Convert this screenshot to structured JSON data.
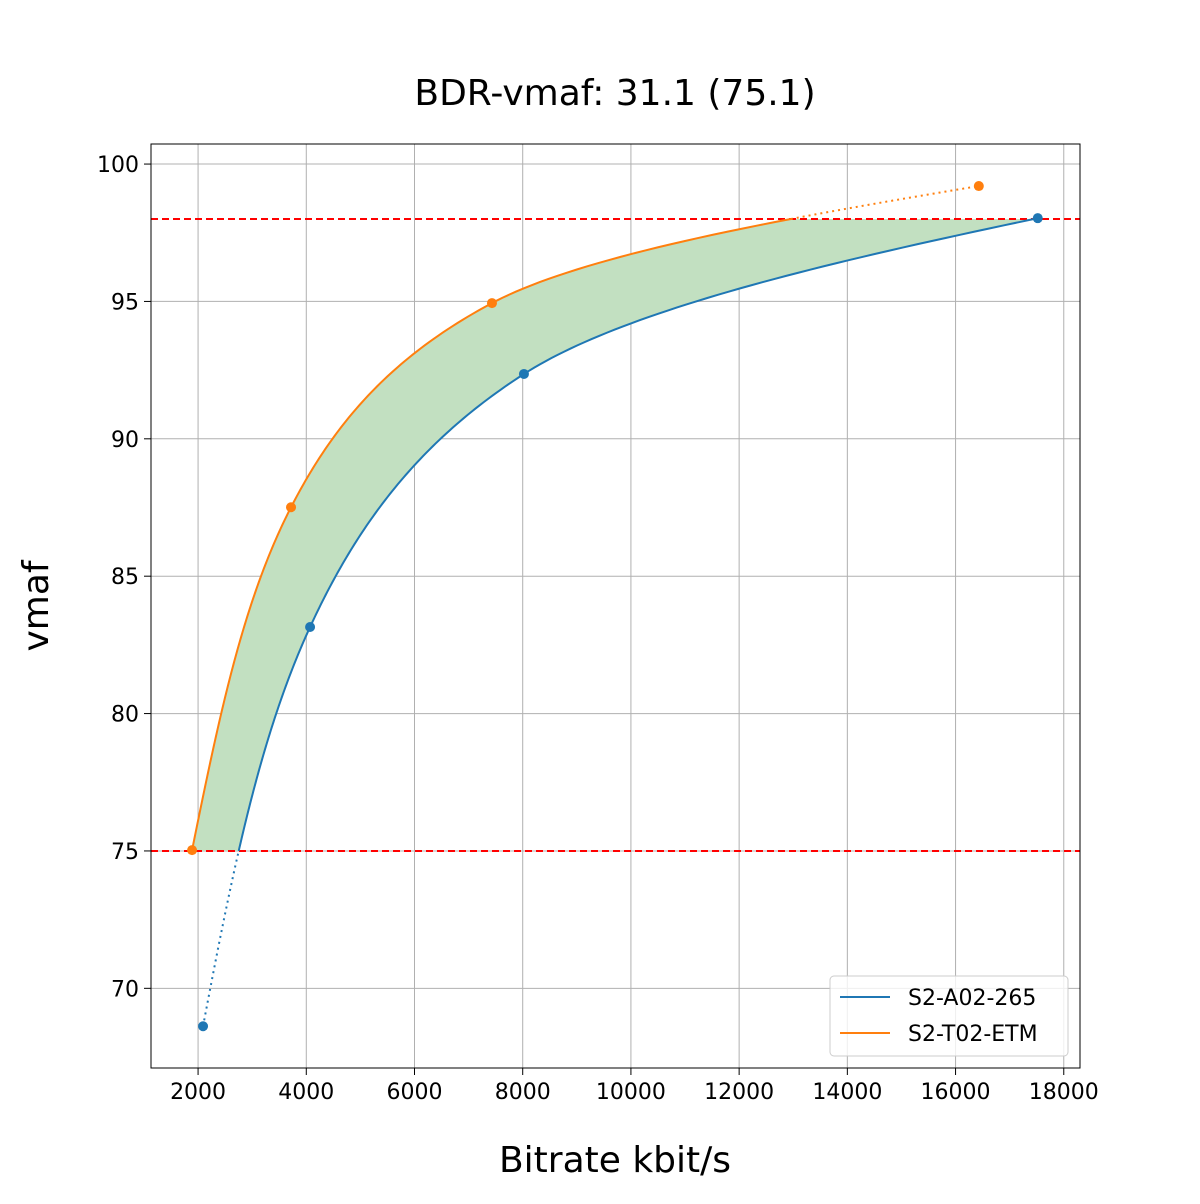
{
  "chart_data": {
    "type": "line",
    "title": "BDR-vmaf: 31.1 (75.1)",
    "xlabel": "Bitrate kbit/s",
    "ylabel": "vmaf",
    "xlim": [
      1130,
      18300
    ],
    "ylim": [
      67.1,
      100.73
    ],
    "xticks": [
      2000,
      4000,
      6000,
      8000,
      10000,
      12000,
      14000,
      16000,
      18000
    ],
    "yticks": [
      70,
      75,
      80,
      85,
      90,
      95,
      100
    ],
    "grid": true,
    "legend_position": "lower right",
    "thresholds": [
      75,
      98
    ],
    "threshold_color": "#ff0000",
    "fill_color": "#c2e0c1",
    "series": [
      {
        "name": "S2-A02-265",
        "color": "#1f77b4",
        "x": [
          2092,
          4070,
          8023,
          17519
        ],
        "y": [
          68.62,
          83.15,
          92.36,
          98.03
        ]
      },
      {
        "name": "S2-T02-ETM",
        "color": "#ff7f0e",
        "x": [
          1889,
          3718,
          7432,
          16430
        ],
        "y": [
          75.03,
          87.51,
          94.94,
          99.2
        ]
      }
    ]
  }
}
